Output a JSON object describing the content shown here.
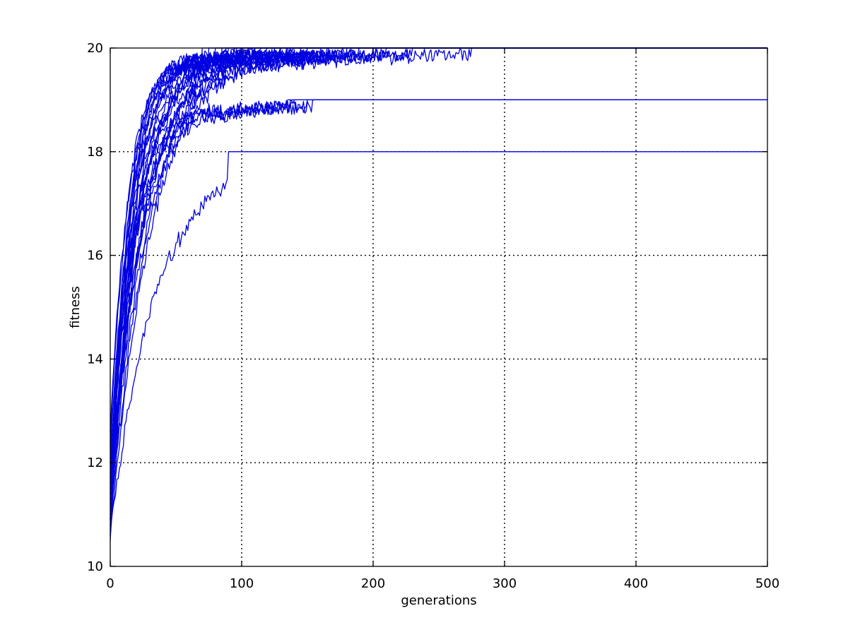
{
  "chart_data": {
    "type": "line",
    "title": "",
    "xlabel": "generations",
    "ylabel": "fitness",
    "xlim": [
      0,
      500
    ],
    "ylim": [
      10,
      20
    ],
    "xticks": [
      0,
      100,
      200,
      300,
      400,
      500
    ],
    "yticks": [
      10,
      12,
      14,
      16,
      18,
      20
    ],
    "grid": true,
    "line_color": "#0000e0",
    "series_count": 30,
    "series_plateau_generations": [
      [
        275,
        20
      ],
      [
        230,
        20
      ],
      [
        210,
        20
      ],
      [
        200,
        20
      ],
      [
        180,
        20
      ],
      [
        165,
        20
      ],
      [
        150,
        20
      ],
      [
        140,
        20
      ],
      [
        130,
        20
      ],
      [
        120,
        20
      ],
      [
        115,
        20
      ],
      [
        110,
        20
      ],
      [
        105,
        20
      ],
      [
        100,
        20
      ],
      [
        95,
        20
      ],
      [
        90,
        20
      ],
      [
        85,
        20
      ],
      [
        80,
        20
      ],
      [
        75,
        20
      ],
      [
        70,
        20
      ],
      [
        125,
        20
      ],
      [
        135,
        20
      ],
      [
        145,
        20
      ],
      [
        160,
        20
      ],
      [
        190,
        20
      ],
      [
        155,
        19
      ],
      [
        150,
        19
      ],
      [
        140,
        19
      ],
      [
        135,
        19
      ],
      [
        90,
        18
      ]
    ],
    "series_rise_rates": [
      0.055,
      0.06,
      0.065,
      0.07,
      0.075,
      0.08,
      0.085,
      0.09,
      0.095,
      0.1,
      0.105,
      0.11,
      0.115,
      0.12,
      0.125,
      0.13,
      0.062,
      0.072,
      0.082,
      0.092,
      0.102,
      0.112,
      0.122,
      0.058,
      0.068,
      0.078,
      0.088,
      0.098,
      0.108,
      0.05
    ],
    "series_start_values": [
      10.6,
      11.0,
      11.4,
      10.8,
      12.0,
      11.2,
      10.5,
      11.6,
      11.8,
      12.2,
      10.9,
      11.3,
      11.7,
      12.4,
      11.1,
      10.7,
      11.5,
      12.1,
      11.9,
      10.6,
      11.0,
      11.4,
      12.6,
      10.8,
      11.2,
      11.6,
      12.0,
      10.9,
      11.3,
      10.7
    ]
  }
}
